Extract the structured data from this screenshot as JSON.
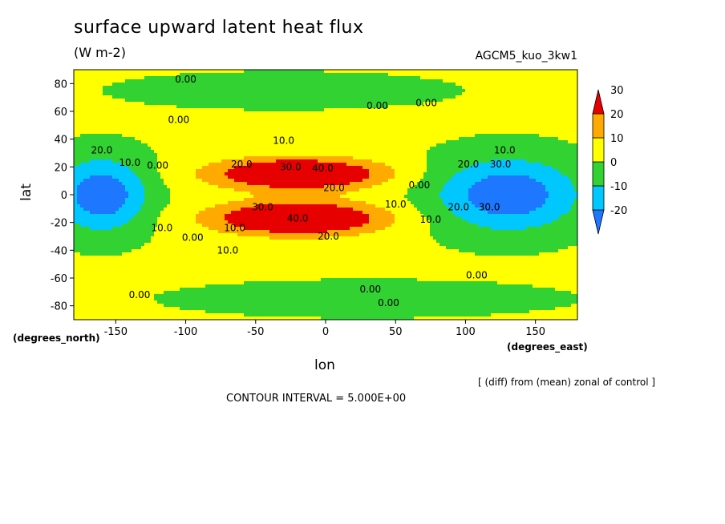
{
  "chart_data": {
    "type": "heatmap",
    "title": "surface upward latent heat flux",
    "units": "(W m-2)",
    "run_name": "AGCM5_kuo_3kw1",
    "xlabel": "lon",
    "ylabel": "lat",
    "x_unit_label": "(degrees_east)",
    "y_unit_label": "(degrees_north)",
    "xlim": [
      -180,
      180
    ],
    "ylim": [
      -90,
      90
    ],
    "xticks": [
      -150,
      -100,
      -50,
      0,
      50,
      100,
      150
    ],
    "yticks": [
      80,
      60,
      40,
      20,
      0,
      -20,
      -40,
      -60,
      -80
    ],
    "xtick_labels": [
      "-150",
      "-100",
      "-50",
      "0",
      "50",
      "100",
      "150"
    ],
    "ytick_labels": [
      "80",
      "60",
      "40",
      "20",
      "0",
      "-20",
      "-40",
      "-60",
      "-80"
    ],
    "contour_interval_text": "CONTOUR INTERVAL = 5.000E+00",
    "annotation": "[ (diff) from (mean) zonal of control ]",
    "colorbar": {
      "levels": [
        -20,
        -10,
        0,
        10,
        20,
        30
      ],
      "labels": [
        "-20",
        "-10",
        "0",
        "10",
        "20",
        "30"
      ],
      "colors": [
        "#1e78ff",
        "#00c8ff",
        "#32d232",
        "#ffff00",
        "#ffaa00",
        "#e60000"
      ]
    },
    "features": [
      {
        "kind": "positive",
        "lon": -20,
        "lat": 15,
        "lon_half_width": 65,
        "lat_half_width": 12,
        "peak": 40
      },
      {
        "kind": "positive",
        "lon": -20,
        "lat": -17,
        "lon_half_width": 65,
        "lat_half_width": 13,
        "peak": 40
      },
      {
        "kind": "negative",
        "lon": 130,
        "lat": 0,
        "lon_half_width": 55,
        "lat_half_width": 28,
        "peak": -30
      },
      {
        "kind": "negative",
        "lon": -160,
        "lat": 0,
        "lon_half_width": 35,
        "lat_half_width": 28,
        "peak": -30
      },
      {
        "kind": "negative",
        "lon": -30,
        "lat": 75,
        "lon_half_width": 110,
        "lat_half_width": 12,
        "peak": -8
      },
      {
        "kind": "negative",
        "lon": 30,
        "lat": -75,
        "lon_half_width": 130,
        "lat_half_width": 12,
        "peak": -8
      }
    ],
    "contour_labels": [
      {
        "text": "0.00",
        "lon": -100,
        "lat": 83
      },
      {
        "text": "0.00",
        "lon": 37,
        "lat": 64
      },
      {
        "text": "0.00",
        "lon": 72,
        "lat": 66
      },
      {
        "text": "0.00",
        "lon": -105,
        "lat": 54
      },
      {
        "text": "10.0",
        "lon": -30,
        "lat": 39
      },
      {
        "text": "20.0",
        "lon": -160,
        "lat": 32
      },
      {
        "text": "10.0",
        "lon": 128,
        "lat": 32
      },
      {
        "text": "10.0",
        "lon": -140,
        "lat": 23
      },
      {
        "text": "0.00",
        "lon": -120,
        "lat": 21
      },
      {
        "text": "20.0",
        "lon": -60,
        "lat": 22
      },
      {
        "text": "30.0",
        "lon": -25,
        "lat": 20
      },
      {
        "text": "40.0",
        "lon": -2,
        "lat": 19
      },
      {
        "text": "20.0",
        "lon": 102,
        "lat": 22
      },
      {
        "text": "30.0",
        "lon": 125,
        "lat": 22
      },
      {
        "text": "20.0",
        "lon": 6,
        "lat": 5
      },
      {
        "text": "0.00",
        "lon": 67,
        "lat": 7
      },
      {
        "text": "10.0",
        "lon": 50,
        "lat": -7
      },
      {
        "text": "20.0",
        "lon": 95,
        "lat": -9
      },
      {
        "text": "30.0",
        "lon": 117,
        "lat": -9
      },
      {
        "text": "30.0",
        "lon": -45,
        "lat": -9
      },
      {
        "text": "40.0",
        "lon": -20,
        "lat": -17
      },
      {
        "text": "10.0",
        "lon": 75,
        "lat": -18
      },
      {
        "text": "10.0",
        "lon": -117,
        "lat": -24
      },
      {
        "text": "10.0",
        "lon": -65,
        "lat": -24
      },
      {
        "text": "20.0",
        "lon": 2,
        "lat": -30
      },
      {
        "text": "0.00",
        "lon": -95,
        "lat": -31
      },
      {
        "text": "10.0",
        "lon": -70,
        "lat": -40
      },
      {
        "text": "0.00",
        "lon": 108,
        "lat": -58
      },
      {
        "text": "0.00",
        "lon": 32,
        "lat": -68
      },
      {
        "text": "0.00",
        "lon": -133,
        "lat": -72
      },
      {
        "text": "0.00",
        "lon": 45,
        "lat": -78
      }
    ]
  }
}
